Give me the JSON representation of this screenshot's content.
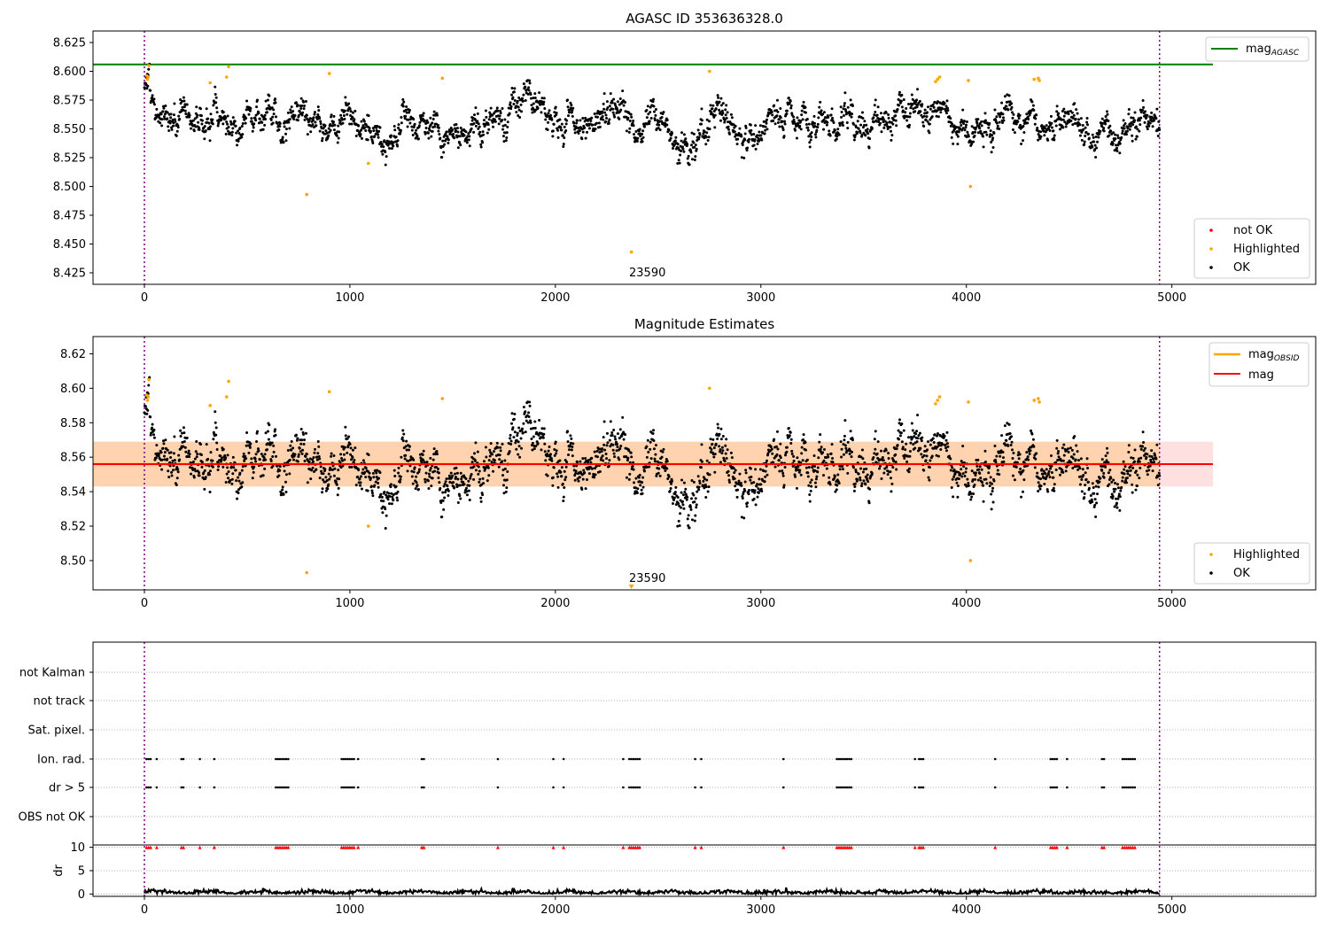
{
  "chart_data": [
    {
      "type": "scatter",
      "title": "AGASC ID 353636328.0",
      "xlim": [
        -250,
        5700
      ],
      "ylim": [
        8.415,
        8.635
      ],
      "x_ticks": [
        0,
        1000,
        2000,
        3000,
        4000,
        5000
      ],
      "y_ticks": [
        8.425,
        8.45,
        8.475,
        8.5,
        8.525,
        8.55,
        8.575,
        8.6,
        8.625
      ],
      "y_tick_decimals": 3,
      "vlines": [
        0,
        4940
      ],
      "hline": {
        "label": "mag_AGASC",
        "value": 8.606,
        "x_range": [
          -250,
          5200
        ],
        "color": "#008000"
      },
      "annotation": {
        "text": "23590",
        "x": 2370,
        "y": 8.42
      },
      "series_ok": {
        "name": "OK",
        "color": "#000000",
        "x_range": [
          0,
          4940
        ],
        "count": 2400,
        "baseline": 8.556
      },
      "series_highlighted": {
        "name": "Highlighted",
        "color": "#ffa500",
        "points": [
          [
            12,
            8.596
          ],
          [
            15,
            8.593
          ],
          [
            18,
            8.595
          ],
          [
            22,
            8.605
          ],
          [
            320,
            8.59
          ],
          [
            400,
            8.595
          ],
          [
            410,
            8.604
          ],
          [
            790,
            8.493
          ],
          [
            900,
            8.598
          ],
          [
            1090,
            8.52
          ],
          [
            1450,
            8.594
          ],
          [
            2370,
            8.443
          ],
          [
            2750,
            8.6
          ],
          [
            3850,
            8.591
          ],
          [
            3860,
            8.593
          ],
          [
            3870,
            8.595
          ],
          [
            4010,
            8.592
          ],
          [
            4020,
            8.5
          ],
          [
            4330,
            8.593
          ],
          [
            4350,
            8.594
          ],
          [
            4355,
            8.592
          ]
        ]
      },
      "legend_top": {
        "entries": [
          "mag_AGASC"
        ],
        "position": "upper right"
      },
      "legend_bottom": {
        "entries": [
          "not OK",
          "Highlighted",
          "OK"
        ],
        "colors": [
          "#ff0000",
          "#ffa500",
          "#000000"
        ],
        "position": "lower right"
      }
    },
    {
      "type": "scatter",
      "title": "Magnitude Estimates",
      "xlim": [
        -250,
        5700
      ],
      "ylim": [
        8.483,
        8.63
      ],
      "x_ticks": [
        0,
        1000,
        2000,
        3000,
        4000,
        5000
      ],
      "y_ticks": [
        8.5,
        8.52,
        8.54,
        8.56,
        8.58,
        8.6,
        8.62
      ],
      "y_tick_decimals": 2,
      "vlines": [
        0,
        4940
      ],
      "mag_line": {
        "label": "mag",
        "value": 8.556,
        "x_range": [
          -250,
          5200
        ],
        "color": "#ff0000"
      },
      "mag_band": {
        "low": 8.543,
        "high": 8.569,
        "x_range": [
          -250,
          5200
        ]
      },
      "obsid_band": {
        "label": "mag_OBSID",
        "low": 8.543,
        "high": 8.569,
        "x_range": [
          -250,
          4940
        ],
        "color": "#ffa500"
      },
      "annotation": {
        "text": "23590",
        "x": 2370,
        "y": 8.488
      },
      "legend_top": {
        "entries": [
          "mag_OBSID",
          "mag"
        ],
        "colors": [
          "#ffa500",
          "#ff0000"
        ],
        "position": "upper right"
      },
      "legend_bottom": {
        "entries": [
          "Highlighted",
          "OK"
        ],
        "colors": [
          "#ffa500",
          "#000000"
        ],
        "position": "lower right"
      }
    },
    {
      "type": "scatter",
      "title": "",
      "xlim": [
        -250,
        5700
      ],
      "x_ticks": [
        0,
        1000,
        2000,
        3000,
        4000,
        5000
      ],
      "flag_rows": [
        "not Kalman",
        "not track",
        "Sat. pixel.",
        "Ion. rad.",
        "dr > 5",
        "OBS not OK"
      ],
      "flag_x": [
        10,
        20,
        30,
        60,
        180,
        190,
        270,
        340,
        640,
        650,
        660,
        670,
        680,
        690,
        700,
        960,
        970,
        980,
        990,
        1000,
        1010,
        1020,
        1040,
        1350,
        1360,
        1720,
        1990,
        2040,
        2330,
        2360,
        2370,
        2380,
        2390,
        2400,
        2410,
        2680,
        2710,
        3110,
        3370,
        3380,
        3390,
        3400,
        3410,
        3420,
        3430,
        3440,
        3750,
        3770,
        3780,
        3790,
        4140,
        4410,
        4420,
        4430,
        4440,
        4490,
        4660,
        4670,
        4760,
        4770,
        4780,
        4790,
        4800,
        4810,
        4820
      ],
      "dr_ylabel": "dr",
      "dr_ylim": [
        -0.5,
        10.5
      ],
      "dr_ticks": [
        0,
        5,
        10
      ],
      "dr_cap": 10,
      "vlines": [
        0,
        4940
      ]
    }
  ]
}
